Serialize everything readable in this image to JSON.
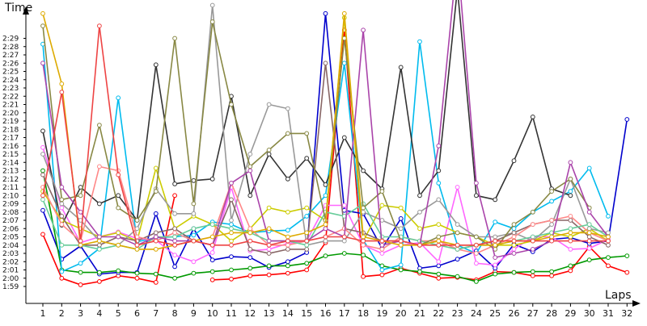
{
  "chart_data": {
    "type": "line",
    "ylabel": "Time",
    "xlabel": "Laps",
    "x": [
      1,
      2,
      3,
      4,
      5,
      6,
      7,
      8,
      9,
      10,
      11,
      12,
      13,
      14,
      15,
      16,
      17,
      18,
      19,
      20,
      21,
      22,
      23,
      24,
      25,
      26,
      27,
      28,
      29,
      30,
      31,
      32
    ],
    "x_tick_labels": [
      "1",
      "2",
      "3",
      "4",
      "5",
      "6",
      "7",
      "8",
      "9",
      "10",
      "11",
      "12",
      "13",
      "14",
      "15",
      "16",
      "17",
      "18",
      "19",
      "20",
      "21",
      "22",
      "23",
      "24",
      "25",
      "26",
      "27",
      "28",
      "29",
      "30",
      "31",
      "32"
    ],
    "y_tick_labels": [
      "1:59",
      "2:00",
      "2:01",
      "2:02",
      "2:03",
      "2:04",
      "2:05",
      "2:06",
      "2:07",
      "2:08",
      "2:09",
      "2:10",
      "2:11",
      "2:12",
      "2:13",
      "2:14",
      "2:15",
      "2:16",
      "2:17",
      "2:18",
      "2:19",
      "2:20",
      "2:21",
      "2:22",
      "2:23",
      "2:24",
      "2:25",
      "2:26",
      "2:27",
      "2:28",
      "2:29"
    ],
    "ylim_seconds": [
      118.2,
      152
    ],
    "y_unit": "m:ss lap time (values in seconds)",
    "grid": false,
    "series": [
      {
        "color": "#ff0000",
        "values": [
          125.3,
          120.0,
          119.2,
          119.6,
          120.3,
          120.0,
          119.5,
          130.0,
          null,
          119.8,
          119.9,
          120.3,
          120.4,
          120.6,
          121.0,
          124.3,
          150.0,
          120.2,
          120.4,
          121.2,
          120.6,
          120.0,
          120.1,
          119.8,
          120.8,
          120.7,
          120.3,
          120.3,
          120.9,
          123.8,
          121.5,
          120.7
        ]
      },
      {
        "color": "#0000cc",
        "values": [
          128.2,
          122.3,
          123.9,
          120.5,
          120.7,
          120.7,
          127.8,
          121.4,
          126.0,
          122.2,
          122.6,
          122.5,
          121.3,
          122.0,
          123.1,
          152.0,
          128.2,
          127.8,
          123.6,
          127.2,
          121.2,
          121.5,
          122.3,
          123.3,
          121.2,
          124.1,
          123.2,
          124.7,
          124.9,
          124.2,
          124.5,
          139.2
        ]
      },
      {
        "color": "#009900",
        "values": [
          133.0,
          121.0,
          120.7,
          120.7,
          120.9,
          120.6,
          120.5,
          120.0,
          120.6,
          120.8,
          121.0,
          121.2,
          121.5,
          121.5,
          121.8,
          122.7,
          123.0,
          122.8,
          121.5,
          121.0,
          120.8,
          120.5,
          120.2,
          119.6,
          120.5,
          120.7,
          120.8,
          120.8,
          121.5,
          122.2,
          122.5,
          122.7
        ]
      },
      {
        "color": "#00bbee",
        "values": [
          148.3,
          120.8,
          121.8,
          123.6,
          141.8,
          124.4,
          124.9,
          125.0,
          125.2,
          126.8,
          126.5,
          125.5,
          125.7,
          125.8,
          127.5,
          130.0,
          146.0,
          124.6,
          121.0,
          121.6,
          148.6,
          131.5,
          124.0,
          123.0,
          126.8,
          126.0,
          128.0,
          129.3,
          130.5,
          133.3,
          127.5,
          null
        ]
      },
      {
        "color": "#ff66ff",
        "values": [
          135.8,
          128.5,
          124.3,
          125.0,
          125.6,
          124.8,
          124.6,
          122.8,
          122.0,
          123.1,
          131.0,
          123.3,
          123.5,
          124.2,
          124.5,
          128.8,
          128.8,
          124.0,
          123.0,
          124.0,
          124.3,
          122.0,
          131.0,
          121.8,
          121.6,
          123.5,
          125.0,
          125.0,
          123.5,
          123.6,
          124.7,
          null
        ]
      },
      {
        "color": "#333333",
        "values": [
          137.8,
          126.4,
          131.0,
          129.0,
          130.0,
          127.0,
          145.8,
          131.4,
          131.8,
          132.0,
          142.0,
          130.0,
          135.0,
          132.0,
          134.5,
          131.3,
          137.0,
          133.0,
          130.8,
          145.5,
          130.0,
          133.0,
          155.0,
          130.0,
          129.5,
          134.2,
          139.5,
          130.8,
          130.0,
          null,
          null,
          null
        ]
      },
      {
        "color": "#cccc00",
        "values": [
          130.5,
          127.0,
          126.0,
          125.0,
          125.5,
          124.5,
          133.3,
          126.0,
          127.5,
          126.5,
          124.5,
          126.0,
          128.5,
          128.0,
          128.5,
          127.0,
          151.5,
          124.5,
          128.8,
          128.5,
          126.0,
          126.5,
          125.5,
          125.0,
          124.0,
          124.0,
          124.5,
          125.5,
          125.0,
          126.0,
          124.5,
          null
        ]
      },
      {
        "color": "#999999",
        "values": [
          135.0,
          129.0,
          127.0,
          124.5,
          124.0,
          126.0,
          130.8,
          127.8,
          127.8,
          153.0,
          127.0,
          135.0,
          141.0,
          140.5,
          124.0,
          124.5,
          124.5,
          128.0,
          127.0,
          126.0,
          128.0,
          129.5,
          126.5,
          125.0,
          125.0,
          125.5,
          124.5,
          126.5,
          132.0,
          126.0,
          125.5,
          null
        ]
      },
      {
        "color": "#886666",
        "values": [
          132.5,
          127.5,
          124.0,
          124.0,
          125.0,
          124.5,
          125.5,
          126.0,
          124.5,
          124.0,
          129.5,
          123.5,
          123.0,
          123.5,
          123.5,
          146.0,
          126.0,
          125.5,
          124.5,
          124.5,
          124.0,
          124.5,
          123.5,
          124.0,
          124.5,
          125.5,
          126.5,
          127.0,
          127.0,
          125.0,
          124.0,
          null
        ]
      },
      {
        "color": "#ff8888",
        "values": [
          131.0,
          126.5,
          124.5,
          133.5,
          133.0,
          125.0,
          124.5,
          125.5,
          124.5,
          125.0,
          131.5,
          126.0,
          124.0,
          124.0,
          124.5,
          125.0,
          126.0,
          124.0,
          123.5,
          125.0,
          124.5,
          124.5,
          123.5,
          123.0,
          124.0,
          125.0,
          126.5,
          127.0,
          127.5,
          125.5,
          124.5,
          null
        ]
      },
      {
        "color": "#66cc99",
        "values": [
          129.5,
          124.0,
          124.0,
          123.5,
          124.0,
          123.5,
          125.0,
          125.0,
          126.0,
          126.5,
          126.0,
          125.5,
          124.5,
          124.5,
          124.0,
          128.0,
          127.5,
          129.0,
          125.0,
          125.0,
          124.5,
          124.0,
          123.5,
          124.0,
          124.0,
          124.5,
          125.0,
          125.5,
          126.0,
          126.5,
          125.0,
          null
        ]
      },
      {
        "color": "#888844",
        "values": [
          150.5,
          129.5,
          130.0,
          138.5,
          128.5,
          127.0,
          130.5,
          149.0,
          129.0,
          151.0,
          141.0,
          133.5,
          135.5,
          137.5,
          137.5,
          127.0,
          149.0,
          128.5,
          130.5,
          124.5,
          124.0,
          125.0,
          125.5,
          125.0,
          123.5,
          126.5,
          128.0,
          130.5,
          132.0,
          128.5,
          null,
          null
        ]
      },
      {
        "color": "#aa44aa",
        "values": [
          146.0,
          131.0,
          128.0,
          125.0,
          125.0,
          124.0,
          125.0,
          124.5,
          124.5,
          124.0,
          131.5,
          133.0,
          124.5,
          124.5,
          124.5,
          126.0,
          125.0,
          150.0,
          124.0,
          124.5,
          124.0,
          136.0,
          159.0,
          131.5,
          122.5,
          123.0,
          123.5,
          124.5,
          134.0,
          128.0,
          125.0,
          null
        ]
      },
      {
        "color": "#ddaa00",
        "values": [
          152.0,
          143.5,
          124.0,
          124.5,
          124.0,
          123.5,
          123.5,
          124.0,
          124.5,
          125.0,
          125.5,
          125.5,
          126.0,
          125.0,
          125.5,
          126.5,
          152.0,
          125.0,
          124.5,
          124.0,
          124.0,
          124.5,
          124.0,
          124.0,
          124.0,
          124.5,
          124.5,
          125.0,
          125.5,
          125.5,
          125.0,
          null
        ]
      },
      {
        "color": "#ee4444",
        "values": [
          130.0,
          142.5,
          124.5,
          150.5,
          132.5,
          124.0,
          124.5,
          124.0,
          124.5,
          124.0,
          124.0,
          124.5,
          124.0,
          124.5,
          124.5,
          125.0,
          125.0,
          124.5,
          124.5,
          124.5,
          124.0,
          124.0,
          124.0,
          124.0,
          124.5,
          124.5,
          124.5,
          124.5,
          124.5,
          124.5,
          124.5,
          null
        ]
      }
    ]
  }
}
